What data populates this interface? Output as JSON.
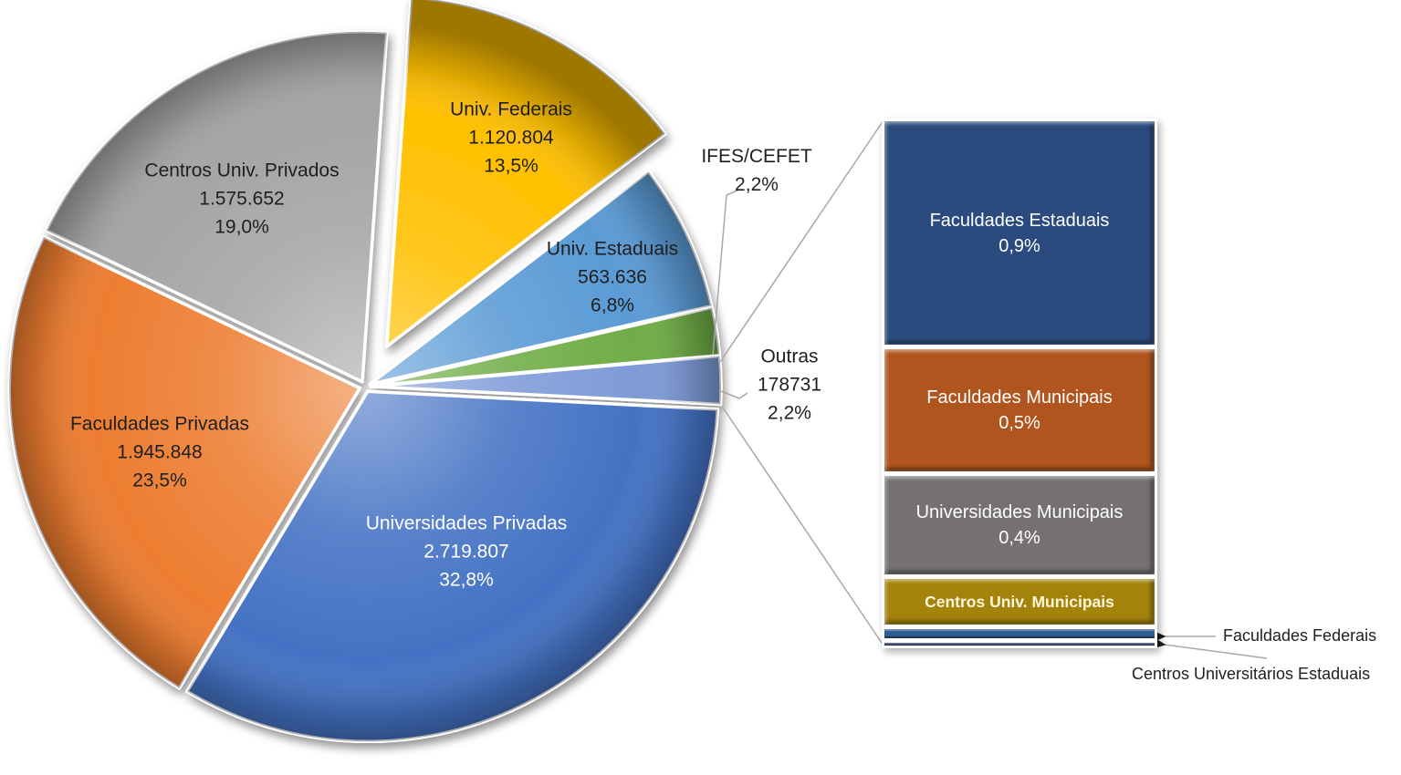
{
  "chart_data": {
    "type": "pie",
    "variant": "bar-of-pie",
    "title": "",
    "legend": "none",
    "connector_color": "#A8A8A8",
    "pie": {
      "slices": [
        {
          "label": "Univ. Federais",
          "value": "1.120.804",
          "pct": 13.5,
          "pct_label": "13,5%",
          "color": "#FFC000",
          "text_color": "#1f1f1f",
          "label_placement": "inside",
          "exploded": true
        },
        {
          "label": "Univ. Estaduais",
          "value": "563.636",
          "pct": 6.8,
          "pct_label": "6,8%",
          "color": "#5B9BD5",
          "text_color": "#1f1f1f",
          "label_placement": "inside",
          "exploded": false
        },
        {
          "label": "IFES/CEFET",
          "value": "",
          "pct": 2.2,
          "pct_label": "2,2%",
          "color": "#70AD47",
          "text_color": "#1f1f1f",
          "label_placement": "outside",
          "exploded": false
        },
        {
          "label": "Outras",
          "value": "178731",
          "pct": 2.2,
          "pct_label": "2,2%",
          "color": "#7E9BD8",
          "text_color": "#1f1f1f",
          "label_placement": "outside",
          "exploded": false
        },
        {
          "label": "Universidades Privadas",
          "value": "2.719.807",
          "pct": 32.8,
          "pct_label": "32,8%",
          "color": "#4472C4",
          "text_color": "#ffffff",
          "label_placement": "inside",
          "exploded": false
        },
        {
          "label": "Faculdades Privadas",
          "value": "1.945.848",
          "pct": 23.5,
          "pct_label": "23,5%",
          "color": "#ED7D31",
          "text_color": "#1f1f1f",
          "label_placement": "inside",
          "exploded": false
        },
        {
          "label": "Centros Univ. Privados",
          "value": "1.575.652",
          "pct": 19.0,
          "pct_label": "19,0%",
          "color": "#A5A5A5",
          "text_color": "#1f1f1f",
          "label_placement": "inside",
          "exploded": false
        }
      ]
    },
    "bar": {
      "expanded_from_slice": "Outras",
      "segments": [
        {
          "label": "Faculdades Estaduais",
          "pct_label": "0,9%",
          "color": "#2B4B7E",
          "text_color": "#ffffff",
          "label_placement": "inside"
        },
        {
          "label": "Faculdades Municipais",
          "pct_label": "0,5%",
          "color": "#B0551E",
          "text_color": "#ffffff",
          "label_placement": "inside"
        },
        {
          "label": "Universidades Municipais",
          "pct_label": "0,4%",
          "color": "#767171",
          "text_color": "#ffffff",
          "label_placement": "inside"
        },
        {
          "label": "Centros Univ. Municipais",
          "pct_label": "",
          "color": "#A3830B",
          "text_color": "#FFF6DA",
          "label_placement": "inside"
        },
        {
          "label": "Faculdades Federais",
          "pct_label": "",
          "color": "#2E5F92",
          "text_color": "#ffffff",
          "label_placement": "callout"
        },
        {
          "label": "Centros Universitários Estaduais",
          "pct_label": "",
          "color": "#203864",
          "text_color": "#ffffff",
          "label_placement": "callout"
        }
      ]
    }
  }
}
